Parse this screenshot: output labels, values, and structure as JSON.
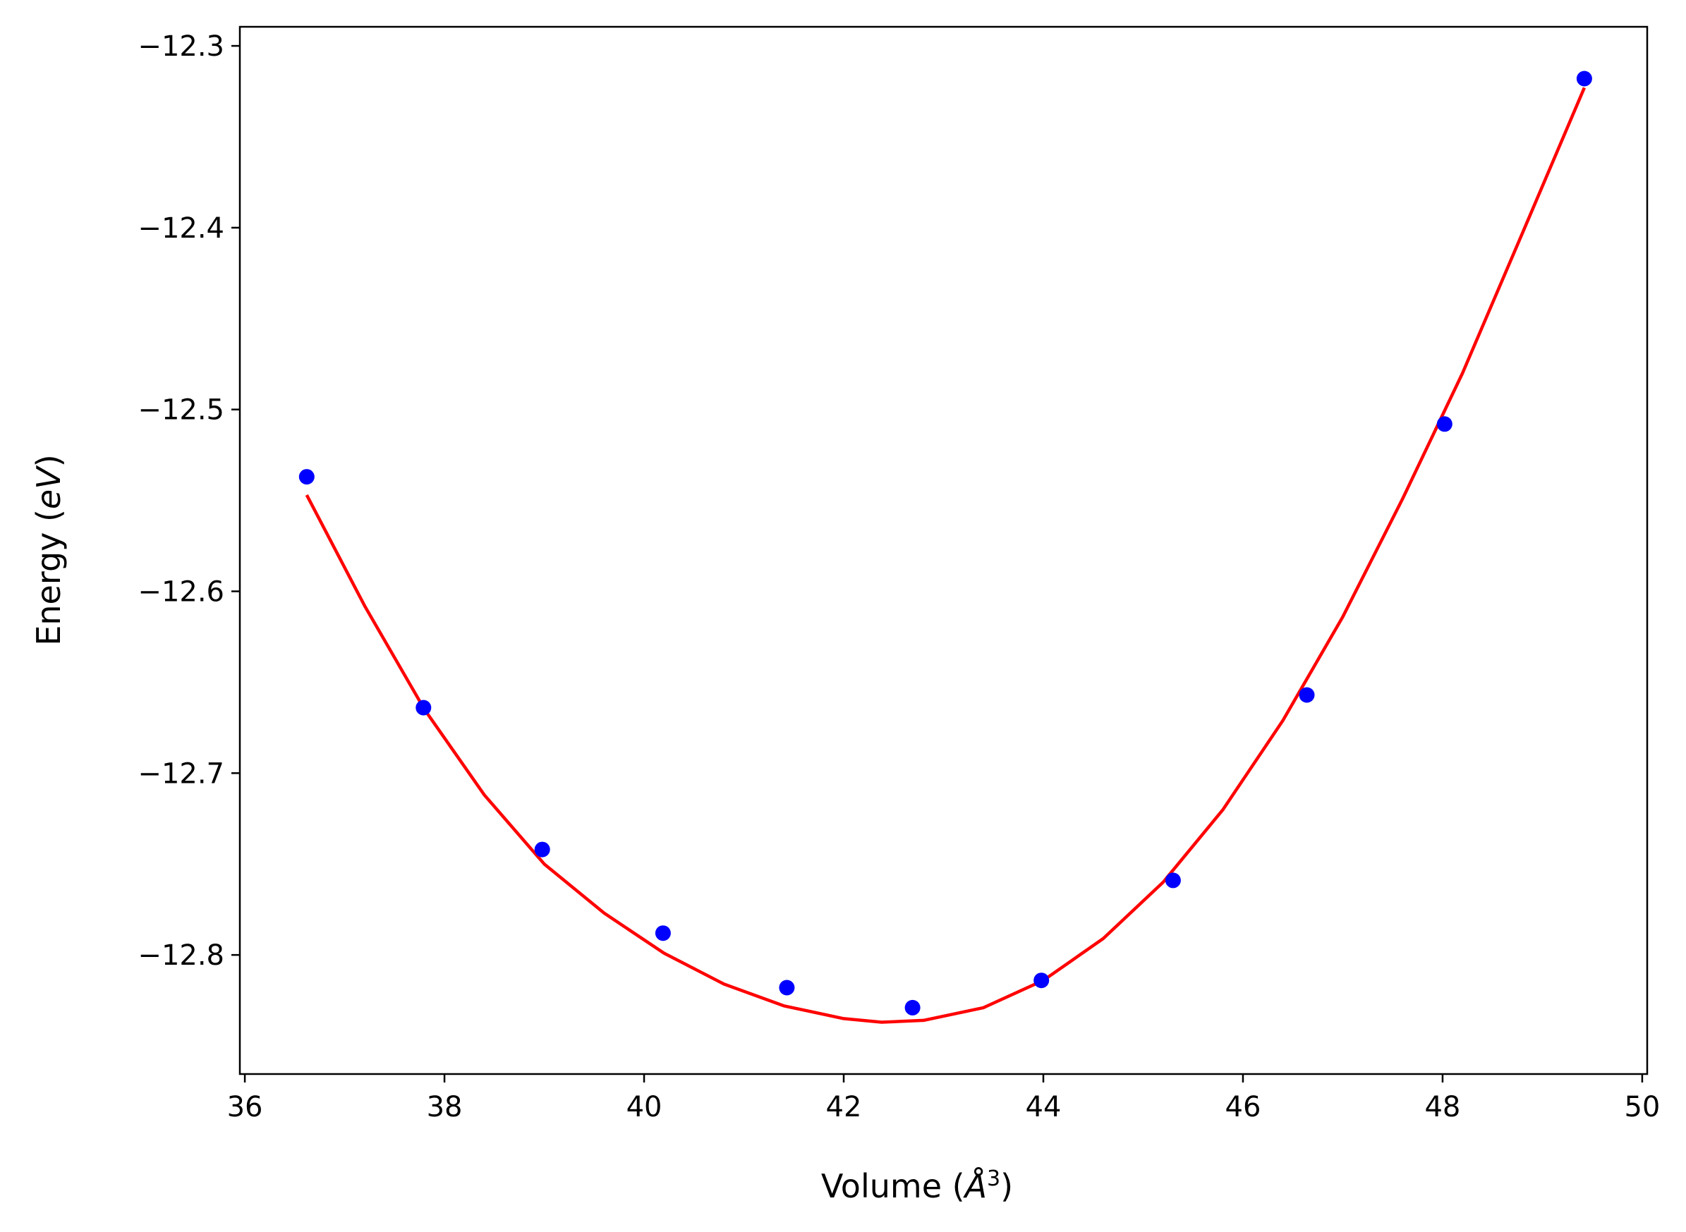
{
  "chart_data": {
    "type": "scatter",
    "title": "",
    "xlabel": {
      "main": "Volume (",
      "italic": "Å",
      "sup": "3",
      "close": ")"
    },
    "ylabel": {
      "main": "Energy (",
      "italic": "eV",
      "close": ")"
    },
    "xlim": [
      35.95,
      50.05
    ],
    "ylim": [
      -12.8655,
      -12.2895
    ],
    "xticks": [
      36,
      38,
      40,
      42,
      44,
      46,
      48,
      50
    ],
    "xtick_labels": [
      "36",
      "38",
      "40",
      "42",
      "44",
      "46",
      "48",
      "50"
    ],
    "yticks": [
      -12.8,
      -12.7,
      -12.6,
      -12.5,
      -12.4,
      -12.3
    ],
    "ytick_labels": [
      "−12.8",
      "−12.7",
      "−12.6",
      "−12.5",
      "−12.4",
      "−12.3"
    ],
    "grid": false,
    "legend": "none",
    "series": [
      {
        "kind": "points",
        "color": "#0000ff",
        "x": [
          36.62,
          37.79,
          38.98,
          40.19,
          41.43,
          42.69,
          43.98,
          45.3,
          46.64,
          48.02,
          49.42
        ],
        "y": [
          -12.537,
          -12.664,
          -12.742,
          -12.788,
          -12.818,
          -12.829,
          -12.814,
          -12.759,
          -12.657,
          -12.508,
          -12.318
        ]
      },
      {
        "kind": "fit-curve",
        "color": "#ff0000",
        "x": [
          36.62,
          37.2,
          37.8,
          38.4,
          39.0,
          39.6,
          40.2,
          40.8,
          41.4,
          42.0,
          42.38,
          42.8,
          43.4,
          44.0,
          44.6,
          45.2,
          45.8,
          46.4,
          47.0,
          47.6,
          48.2,
          48.8,
          49.42
        ],
        "y": [
          -12.547,
          -12.608,
          -12.665,
          -12.712,
          -12.75,
          -12.777,
          -12.799,
          -12.816,
          -12.828,
          -12.835,
          -12.837,
          -12.836,
          -12.829,
          -12.814,
          -12.791,
          -12.76,
          -12.72,
          -12.671,
          -12.614,
          -12.549,
          -12.48,
          -12.403,
          -12.323
        ]
      }
    ]
  }
}
